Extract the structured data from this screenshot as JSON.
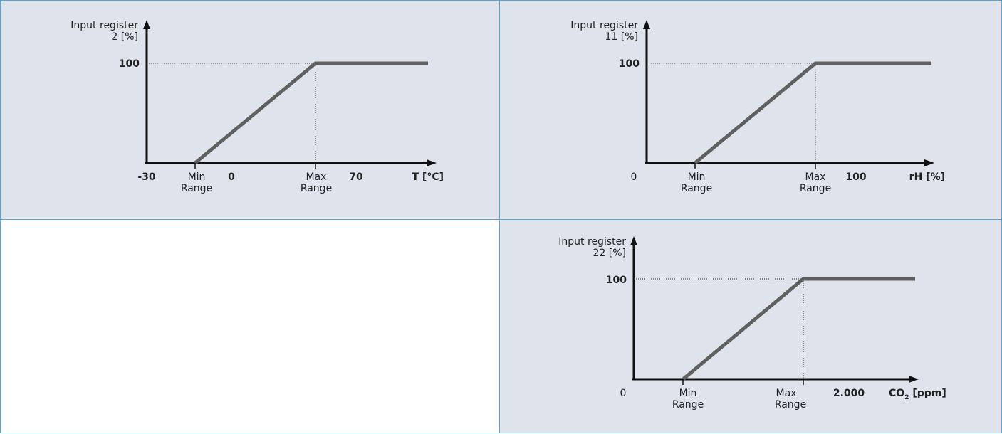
{
  "graphs": [
    {
      "id": "temperature",
      "y_label_line1": "Input register",
      "y_label_line2": "2 [%]",
      "y_tick": "100",
      "x_ticks": [
        "-30",
        "0",
        "70"
      ],
      "min_label": [
        "Min",
        "Range"
      ],
      "max_label": [
        "Max",
        "Range"
      ],
      "x_axis_label": "T [°C]"
    },
    {
      "id": "humidity",
      "y_label_line1": "Input register",
      "y_label_line2": "11 [%]",
      "y_tick": "100",
      "x_ticks": [
        "0",
        "100"
      ],
      "min_label": [
        "Min",
        "Range"
      ],
      "max_label": [
        "Max",
        "Range"
      ],
      "x_axis_label": "rH [%]"
    },
    {
      "id": "co2",
      "y_label_line1": "Input register",
      "y_label_line2": "22 [%]",
      "y_tick": "100",
      "x_ticks": [
        "0",
        "2.000"
      ],
      "min_label": [
        "Min",
        "Range"
      ],
      "max_label": [
        "Max",
        "Range"
      ],
      "x_axis_label_main": "CO",
      "x_axis_label_sub": "2",
      "x_axis_label_unit": " [ppm]"
    }
  ],
  "colors": {
    "panel_bg": "#dfe3ec",
    "border": "#5aa7d4",
    "curve": "#606060",
    "axis": "#111111"
  }
}
